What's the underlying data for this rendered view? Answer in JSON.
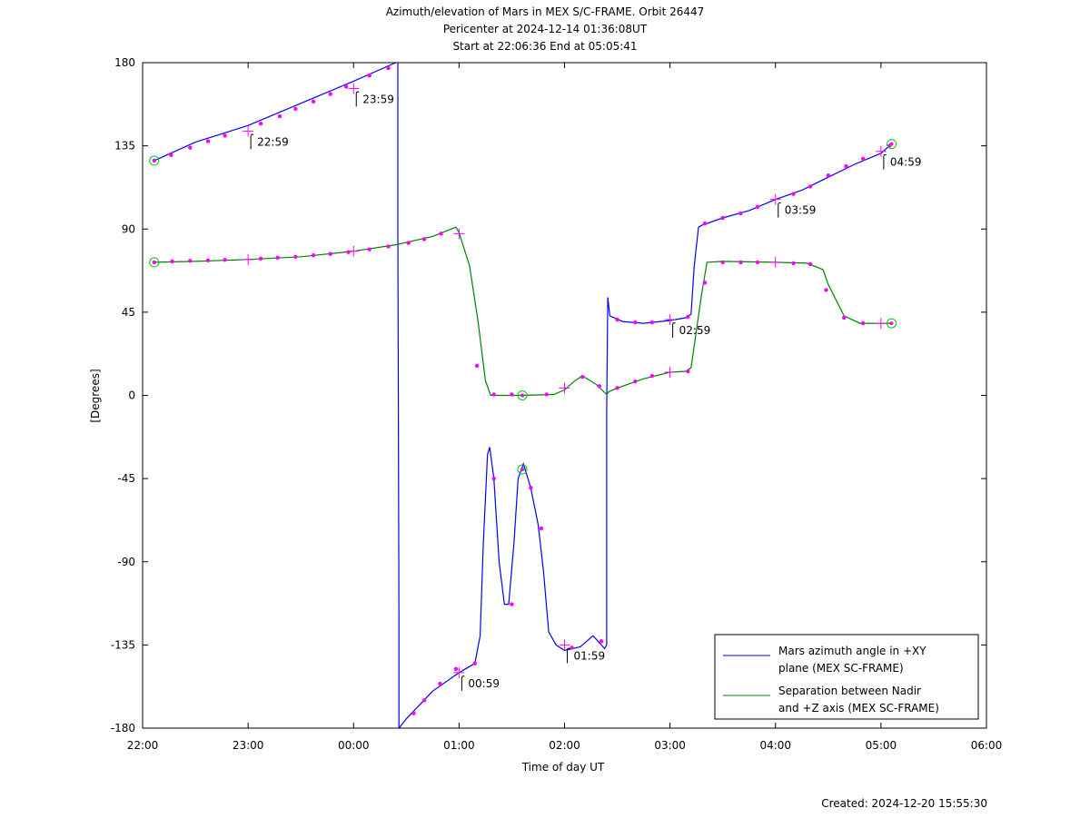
{
  "chart_data": {
    "type": "line",
    "title_lines": [
      "Azimuth/elevation of Mars in MEX S/C-FRAME.  Orbit 26447",
      "Pericenter at 2024-12-14 01:36:08UT",
      "Start at 22:06:36 End at 05:05:41"
    ],
    "xlabel": "Time of day UT",
    "ylabel": "[Degrees]",
    "xlim": [
      22.0,
      30.0
    ],
    "ylim": [
      -180,
      180
    ],
    "xticks": [
      22,
      23,
      24,
      25,
      26,
      27,
      28,
      29,
      30
    ],
    "xtick_labels": [
      "22:00",
      "23:00",
      "00:00",
      "01:00",
      "02:00",
      "03:00",
      "04:00",
      "05:00",
      "06:00"
    ],
    "yticks": [
      180,
      135,
      90,
      45,
      0,
      -45,
      -90,
      -135,
      -180
    ],
    "ytick_labels": [
      "180",
      "135",
      "90",
      "45",
      "0",
      "-45",
      "-90",
      "-135",
      "-180"
    ],
    "series": [
      {
        "name": "Mars azimuth angle in +XY plane (MEX SC-FRAME)",
        "legend_lines": [
          "Mars azimuth angle in +XY",
          "plane (MEX SC-FRAME)"
        ],
        "color": "#0000ff",
        "segments": [
          [
            [
              22.11,
              127
            ],
            [
              22.5,
              137
            ],
            [
              23.0,
              146
            ],
            [
              23.5,
              158
            ],
            [
              24.0,
              170
            ],
            [
              24.4,
              180
            ]
          ],
          [
            [
              24.42,
              180
            ],
            [
              24.42,
              90
            ],
            [
              24.43,
              -120
            ],
            [
              24.43,
              -180
            ]
          ],
          [
            [
              24.43,
              -180
            ],
            [
              24.5,
              -175
            ],
            [
              24.75,
              -160
            ],
            [
              25.0,
              -150
            ],
            [
              25.15,
              -145
            ],
            [
              25.2,
              -130
            ],
            [
              25.23,
              -80
            ],
            [
              25.27,
              -32
            ],
            [
              25.29,
              -28
            ],
            [
              25.33,
              -45
            ],
            [
              25.38,
              -90
            ],
            [
              25.43,
              -113
            ],
            [
              25.47,
              -113
            ],
            [
              25.52,
              -80
            ],
            [
              25.56,
              -45
            ],
            [
              25.61,
              -37
            ],
            [
              25.68,
              -50
            ],
            [
              25.75,
              -70
            ],
            [
              25.8,
              -95
            ],
            [
              25.85,
              -128
            ],
            [
              25.92,
              -135
            ],
            [
              26.0,
              -138
            ],
            [
              26.15,
              -136
            ],
            [
              26.27,
              -130
            ],
            [
              26.38,
              -137
            ],
            [
              26.4,
              -135
            ],
            [
              26.4,
              -10
            ],
            [
              26.41,
              53
            ],
            [
              26.43,
              43
            ],
            [
              26.55,
              40
            ],
            [
              26.75,
              39
            ],
            [
              27.0,
              40.5
            ],
            [
              27.15,
              42
            ],
            [
              27.2,
              44
            ],
            [
              27.23,
              70
            ],
            [
              27.27,
              91
            ],
            [
              27.3,
              92
            ],
            [
              27.5,
              96
            ],
            [
              27.75,
              100
            ],
            [
              28.0,
              106
            ],
            [
              28.25,
              111
            ],
            [
              28.5,
              118
            ],
            [
              28.75,
              125
            ],
            [
              29.0,
              131
            ],
            [
              29.1,
              136
            ]
          ]
        ]
      },
      {
        "name": "Separation between Nadir and +Z axis (MEX SC-FRAME)",
        "legend_lines": [
          "Separation between Nadir",
          "and +Z axis (MEX SC-FRAME)"
        ],
        "color": "#008000",
        "segments": [
          [
            [
              22.11,
              72
            ],
            [
              22.5,
              72.5
            ],
            [
              23.0,
              73.5
            ],
            [
              23.5,
              75
            ],
            [
              24.0,
              78
            ],
            [
              24.4,
              81.5
            ],
            [
              24.75,
              86
            ],
            [
              24.97,
              91
            ],
            [
              25.0,
              88
            ],
            [
              25.1,
              70
            ],
            [
              25.18,
              40
            ],
            [
              25.25,
              8
            ],
            [
              25.3,
              0
            ],
            [
              25.6,
              0
            ],
            [
              25.9,
              0.5
            ],
            [
              26.0,
              3
            ],
            [
              26.1,
              8
            ],
            [
              26.17,
              10.5
            ],
            [
              26.3,
              6
            ],
            [
              26.4,
              0.5
            ],
            [
              26.42,
              2
            ],
            [
              26.5,
              4
            ],
            [
              26.75,
              9
            ],
            [
              27.0,
              12.5
            ],
            [
              27.15,
              13
            ],
            [
              27.2,
              15
            ],
            [
              27.3,
              55
            ],
            [
              27.35,
              72
            ],
            [
              27.5,
              72.5
            ],
            [
              28.0,
              72
            ],
            [
              28.3,
              71.5
            ],
            [
              28.45,
              68
            ],
            [
              28.5,
              60
            ],
            [
              28.65,
              43
            ],
            [
              28.8,
              39
            ],
            [
              29.1,
              39
            ]
          ]
        ]
      }
    ],
    "dot_markers": [
      [
        22.11,
        127
      ],
      [
        22.27,
        130
      ],
      [
        22.45,
        134
      ],
      [
        22.62,
        137.5
      ],
      [
        22.78,
        140.5
      ],
      [
        23.12,
        147
      ],
      [
        23.3,
        151
      ],
      [
        23.45,
        155
      ],
      [
        23.62,
        159
      ],
      [
        23.78,
        163
      ],
      [
        23.93,
        167
      ],
      [
        24.15,
        173
      ],
      [
        24.33,
        177
      ],
      [
        24.57,
        -172
      ],
      [
        24.67,
        -165
      ],
      [
        24.82,
        -156
      ],
      [
        24.97,
        -148
      ],
      [
        25.15,
        -145
      ],
      [
        25.33,
        -45
      ],
      [
        25.5,
        -113
      ],
      [
        25.68,
        -50
      ],
      [
        25.78,
        -72
      ],
      [
        26.07,
        -136.5
      ],
      [
        26.35,
        -133
      ],
      [
        26.5,
        41
      ],
      [
        26.67,
        39.5
      ],
      [
        26.83,
        39.5
      ],
      [
        27.17,
        42.5
      ],
      [
        27.33,
        93
      ],
      [
        27.5,
        96
      ],
      [
        27.67,
        98.5
      ],
      [
        27.83,
        102
      ],
      [
        28.17,
        109
      ],
      [
        28.33,
        113
      ],
      [
        28.5,
        119
      ],
      [
        28.67,
        124
      ],
      [
        28.83,
        128
      ],
      [
        29.08,
        135
      ],
      [
        22.11,
        72
      ],
      [
        22.28,
        72.5
      ],
      [
        22.45,
        72.8
      ],
      [
        22.62,
        73
      ],
      [
        22.78,
        73.3
      ],
      [
        23.12,
        74
      ],
      [
        23.28,
        74.5
      ],
      [
        23.45,
        75
      ],
      [
        23.62,
        75.8
      ],
      [
        23.78,
        76.5
      ],
      [
        23.95,
        77.5
      ],
      [
        24.15,
        79
      ],
      [
        24.33,
        80.5
      ],
      [
        24.52,
        82.5
      ],
      [
        24.67,
        84.5
      ],
      [
        24.83,
        87.5
      ],
      [
        25.17,
        16
      ],
      [
        25.33,
        0.5
      ],
      [
        25.5,
        0.5
      ],
      [
        25.83,
        0.5
      ],
      [
        26.17,
        10
      ],
      [
        26.33,
        5
      ],
      [
        26.5,
        4
      ],
      [
        26.67,
        7.5
      ],
      [
        26.83,
        10.5
      ],
      [
        27.17,
        13
      ],
      [
        27.33,
        61
      ],
      [
        27.5,
        72
      ],
      [
        27.67,
        72
      ],
      [
        27.83,
        72
      ],
      [
        28.17,
        71.5
      ],
      [
        28.33,
        71
      ],
      [
        28.48,
        57
      ],
      [
        28.65,
        42
      ],
      [
        28.83,
        39
      ]
    ],
    "hour_markers": [
      {
        "x": 23.0,
        "y": 143,
        "label": "22:59"
      },
      {
        "x": 24.0,
        "y": 166,
        "label": "23:59"
      },
      {
        "x": 25.0,
        "y": -150,
        "label": "00:59"
      },
      {
        "x": 26.0,
        "y": -135,
        "label": "01:59"
      },
      {
        "x": 27.0,
        "y": 41,
        "label": "02:59"
      },
      {
        "x": 28.0,
        "y": 106,
        "label": "03:59"
      },
      {
        "x": 29.0,
        "y": 132,
        "label": "04:59"
      }
    ],
    "plus_markers": [
      [
        23.0,
        73.5
      ],
      [
        24.0,
        78
      ],
      [
        25.0,
        87.5
      ],
      [
        26.0,
        4
      ],
      [
        27.0,
        12.5
      ],
      [
        28.0,
        72
      ],
      [
        29.0,
        39
      ]
    ],
    "circle_markers": [
      [
        22.11,
        127
      ],
      [
        22.11,
        72
      ],
      [
        29.1,
        136
      ],
      [
        29.1,
        39
      ],
      [
        25.6,
        0
      ],
      [
        25.6,
        -40
      ]
    ],
    "legend_position": "bottom-right",
    "grid": false
  },
  "footer": {
    "created": "Created: 2024-12-20 15:55:30"
  }
}
